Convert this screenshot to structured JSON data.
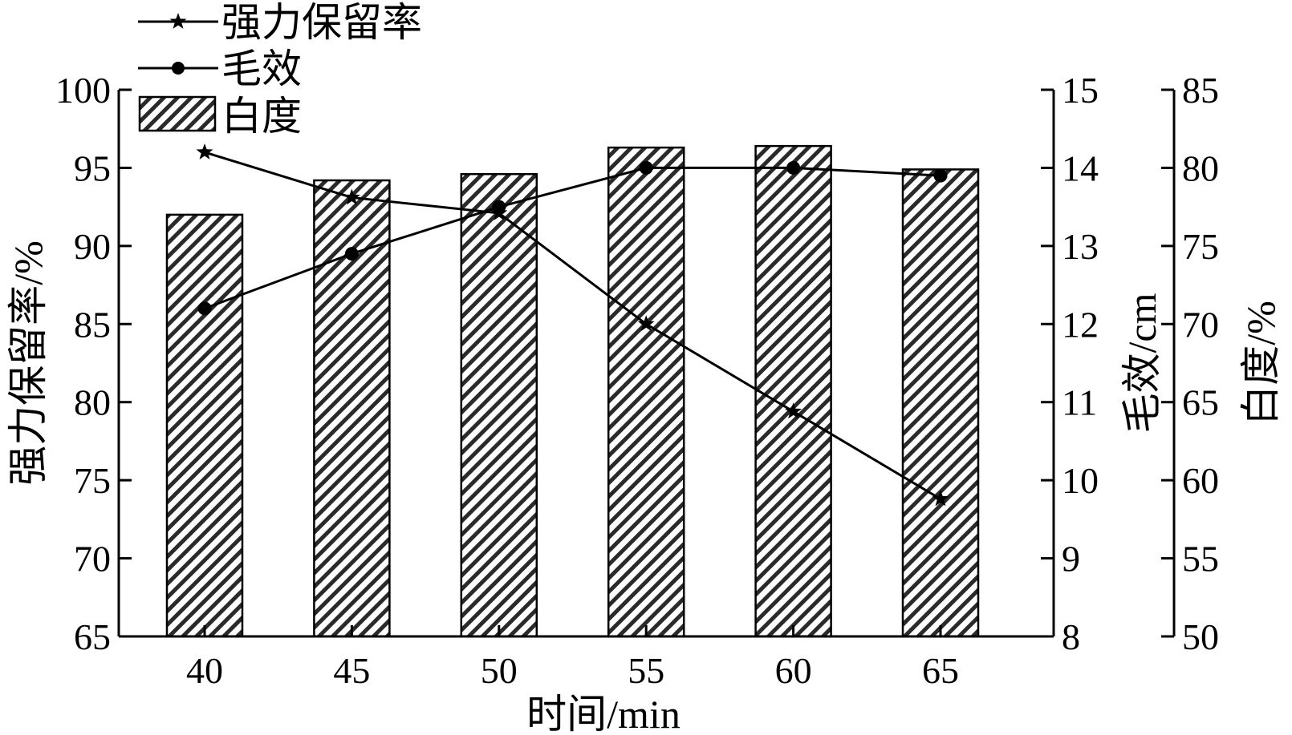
{
  "chart_data": {
    "type": "bar",
    "categories": [
      "40",
      "45",
      "50",
      "55",
      "60",
      "65"
    ],
    "xlabel": "时间/min",
    "axes": {
      "left": {
        "label": "强力保留率/%",
        "ylim": [
          65,
          100
        ],
        "ticks": [
          "65",
          "70",
          "75",
          "80",
          "85",
          "90",
          "95",
          "100"
        ]
      },
      "right1": {
        "label": "毛效/cm",
        "ylim": [
          8,
          15
        ],
        "ticks": [
          "8",
          "9",
          "10",
          "11",
          "12",
          "13",
          "14",
          "15"
        ]
      },
      "right2": {
        "label": "白度/%",
        "ylim": [
          50,
          85
        ],
        "ticks": [
          "50",
          "55",
          "60",
          "65",
          "70",
          "75",
          "80",
          "85"
        ]
      }
    },
    "series": [
      {
        "name": "强力保留率",
        "kind": "line",
        "marker": "star",
        "axis": "left",
        "values": [
          96.0,
          93.1,
          92.1,
          85.0,
          79.4,
          73.8
        ]
      },
      {
        "name": "毛效",
        "kind": "line",
        "marker": "circle",
        "axis": "right1",
        "values": [
          12.2,
          12.9,
          13.5,
          14.0,
          14.0,
          13.9
        ]
      },
      {
        "name": "白度",
        "kind": "bar",
        "pattern": "hatch",
        "axis": "right2",
        "values": [
          77.0,
          79.2,
          79.6,
          81.3,
          81.4,
          79.9
        ]
      }
    ],
    "legend": {
      "placement": "top-left"
    },
    "grid": false
  }
}
